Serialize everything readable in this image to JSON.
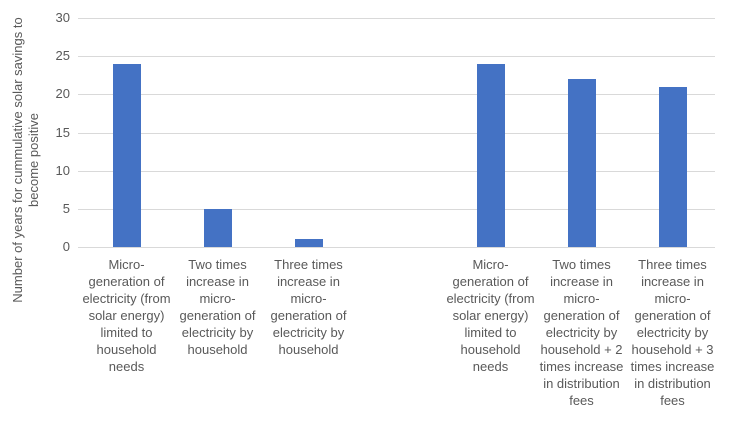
{
  "chart_data": {
    "type": "bar",
    "title": "",
    "xlabel": "",
    "ylabel": "Number of years for cummulative solar savings to become positive",
    "ylabel_lines": [
      "Number of years for cummulative solar savings to",
      "become positive"
    ],
    "ylim": [
      0,
      30
    ],
    "yticks": [
      0,
      5,
      10,
      15,
      20,
      25,
      30
    ],
    "grid": true,
    "legend": "none",
    "bar_color": "#4472C4",
    "gridline_color": "#D9D9D9",
    "text_color": "#595959",
    "background_color": "#FFFFFF",
    "categories": [
      "Micro-generation of electricity (from solar energy) limited to household needs",
      "Two times increase in micro-generation of electricity by household",
      "Three times increase in micro-generation of electricity by household",
      "Micro-generation of electricity (from solar energy) limited to household needs",
      "Two times increase in micro-generation of electricity by household + 2 times increase in distribution fees",
      "Three times increase in micro-generation of electricity by household + 3 times increase in distribution fees"
    ],
    "values": [
      24,
      5,
      1,
      24,
      22,
      21
    ],
    "group_gap_after_index": 2
  }
}
